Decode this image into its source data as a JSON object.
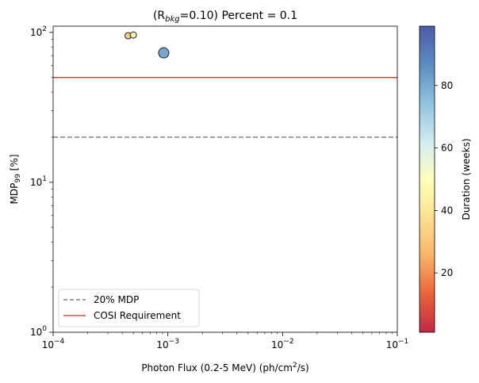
{
  "chart_data": {
    "type": "scatter",
    "title": "(R",
    "title_sub": "bkg",
    "title_rest": "=0.10) Percent = 0.1",
    "xlabel": "Photon Flux (0.2-5 MeV) (ph/cm",
    "xlabel_sup": "2",
    "xlabel_rest": "/s)",
    "ylabel": "MDP",
    "ylabel_sub": "99",
    "ylabel_rest": " [%]",
    "x_scale": "log",
    "y_scale": "log",
    "xlim": [
      0.0001,
      0.1
    ],
    "ylim": [
      1,
      110
    ],
    "x_ticks": [
      {
        "value": 0.0001,
        "base": "10",
        "exp": "−4"
      },
      {
        "value": 0.001,
        "base": "10",
        "exp": "−3"
      },
      {
        "value": 0.01,
        "base": "10",
        "exp": "−2"
      },
      {
        "value": 0.1,
        "base": "10",
        "exp": "−1"
      }
    ],
    "y_ticks": [
      {
        "value": 1,
        "base": "10",
        "exp": "0"
      },
      {
        "value": 10,
        "base": "10",
        "exp": "1"
      },
      {
        "value": 100,
        "base": "10",
        "exp": "2"
      }
    ],
    "points": [
      {
        "x": 0.00045,
        "y": 95,
        "duration": 30,
        "size": "small"
      },
      {
        "x": 0.0005,
        "y": 96,
        "duration": 48,
        "size": "small"
      },
      {
        "x": 0.00092,
        "y": 73,
        "duration": 85,
        "size": "large"
      }
    ],
    "hlines": [
      {
        "y": 20,
        "label": "20% MDP",
        "color": "#808080",
        "style": "dashed"
      },
      {
        "y": 50,
        "label": "COSI Requirement",
        "color": "#e41a1c",
        "style": "solid"
      }
    ],
    "legend_position": "lower-left",
    "colorbar": {
      "label": "Duration (weeks)",
      "colormap": "RdYlBu",
      "range": [
        1,
        99
      ],
      "ticks": [
        20,
        40,
        60,
        80
      ],
      "tick_labels": [
        "20",
        "40",
        "60",
        "80"
      ]
    }
  }
}
